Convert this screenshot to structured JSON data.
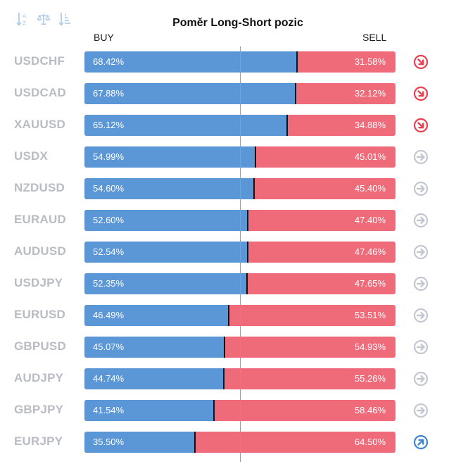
{
  "title": "Poměr Long-Short pozic",
  "headers": {
    "buy": "BUY",
    "sell": "SELL"
  },
  "toolbar": [
    {
      "icon": "sort-alpha-icon"
    },
    {
      "icon": "balance-scale-icon"
    },
    {
      "icon": "sort-numeric-icon"
    }
  ],
  "colors": {
    "buy": "#5b96d6",
    "sell": "#f06b7a",
    "symbol": "#b9bcc4",
    "signal_down": "#e8404f",
    "signal_neutral": "#c3c7d1",
    "signal_up": "#3f86d0"
  },
  "rows": [
    {
      "symbol": "USDCHF",
      "buy": 68.42,
      "buy_label": "68.42%",
      "sell_label": "31.58%",
      "signal": "down"
    },
    {
      "symbol": "USDCAD",
      "buy": 67.88,
      "buy_label": "67.88%",
      "sell_label": "32.12%",
      "signal": "down"
    },
    {
      "symbol": "XAUUSD",
      "buy": 65.12,
      "buy_label": "65.12%",
      "sell_label": "34.88%",
      "signal": "down"
    },
    {
      "symbol": "USDX",
      "buy": 54.99,
      "buy_label": "54.99%",
      "sell_label": "45.01%",
      "signal": "neutral"
    },
    {
      "symbol": "NZDUSD",
      "buy": 54.6,
      "buy_label": "54.60%",
      "sell_label": "45.40%",
      "signal": "neutral"
    },
    {
      "symbol": "EURAUD",
      "buy": 52.6,
      "buy_label": "52.60%",
      "sell_label": "47.40%",
      "signal": "neutral"
    },
    {
      "symbol": "AUDUSD",
      "buy": 52.54,
      "buy_label": "52.54%",
      "sell_label": "47.46%",
      "signal": "neutral"
    },
    {
      "symbol": "USDJPY",
      "buy": 52.35,
      "buy_label": "52.35%",
      "sell_label": "47.65%",
      "signal": "neutral"
    },
    {
      "symbol": "EURUSD",
      "buy": 46.49,
      "buy_label": "46.49%",
      "sell_label": "53.51%",
      "signal": "neutral"
    },
    {
      "symbol": "GBPUSD",
      "buy": 45.07,
      "buy_label": "45.07%",
      "sell_label": "54.93%",
      "signal": "neutral"
    },
    {
      "symbol": "AUDJPY",
      "buy": 44.74,
      "buy_label": "44.74%",
      "sell_label": "55.26%",
      "signal": "neutral"
    },
    {
      "symbol": "GBPJPY",
      "buy": 41.54,
      "buy_label": "41.54%",
      "sell_label": "58.46%",
      "signal": "neutral"
    },
    {
      "symbol": "EURJPY",
      "buy": 35.5,
      "buy_label": "35.50%",
      "sell_label": "64.50%",
      "signal": "up"
    }
  ]
}
